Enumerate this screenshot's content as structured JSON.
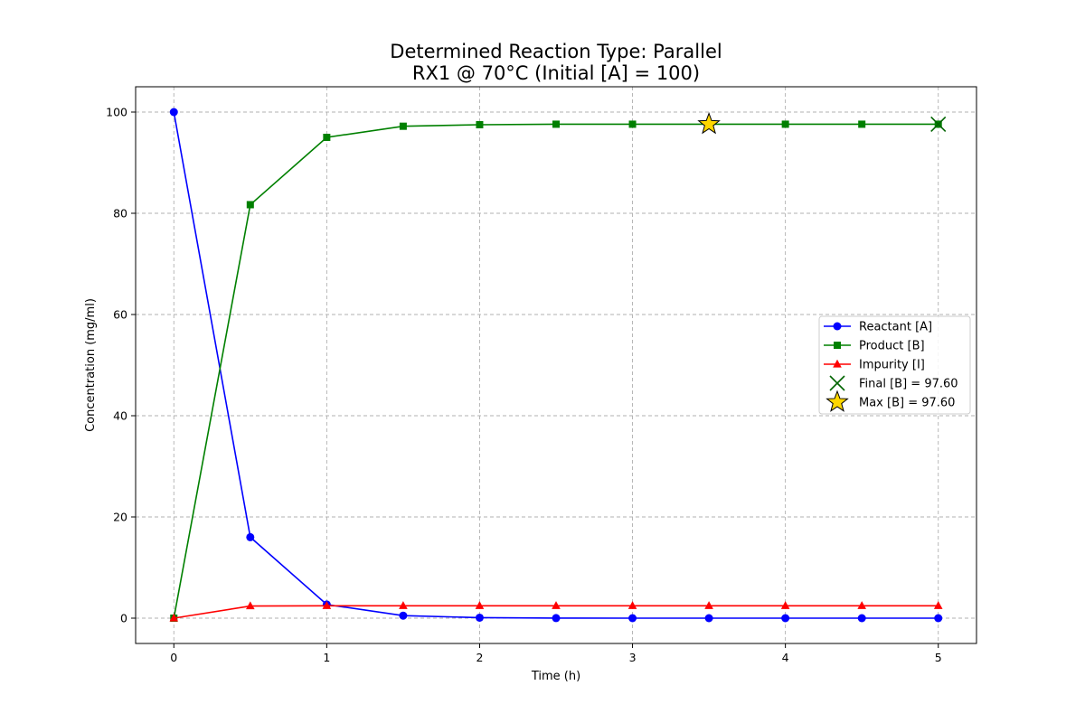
{
  "chart_data": {
    "type": "line",
    "title": "Determined Reaction Type: Parallel",
    "subtitle": "RX1 @ 70°C (Initial [A] = 100)",
    "xlabel": "Time (h)",
    "ylabel": "Concentration (mg/ml)",
    "xlim": [
      -0.25,
      5.25
    ],
    "ylim": [
      -5,
      105
    ],
    "xticks": [
      0,
      1,
      2,
      3,
      4,
      5
    ],
    "yticks": [
      0,
      20,
      40,
      60,
      80,
      100
    ],
    "grid": true,
    "legend_position": "center-right",
    "x": [
      0,
      0.5,
      1,
      1.5,
      2,
      2.5,
      3,
      3.5,
      4,
      4.5,
      5
    ],
    "series": [
      {
        "name": "Reactant [A]",
        "color": "#0000ff",
        "marker": "circle",
        "values": [
          100,
          16.0,
          2.7,
          0.5,
          0.1,
          0.02,
          0,
          0,
          0,
          0,
          0
        ]
      },
      {
        "name": "Product [B]",
        "color": "#008000",
        "marker": "square",
        "values": [
          0,
          81.7,
          95.0,
          97.2,
          97.5,
          97.6,
          97.6,
          97.6,
          97.6,
          97.6,
          97.6
        ]
      },
      {
        "name": "Impurity [I]",
        "color": "#ff0000",
        "marker": "triangle",
        "values": [
          0,
          2.4,
          2.45,
          2.45,
          2.45,
          2.45,
          2.45,
          2.45,
          2.45,
          2.45,
          2.45
        ]
      }
    ],
    "annotations": [
      {
        "name": "Final [B] = 97.60",
        "marker": "x",
        "color": "#006400",
        "x": 5,
        "y": 97.6
      },
      {
        "name": "Max [B] = 97.60",
        "marker": "star",
        "color": "#ffd700",
        "x": 3.5,
        "y": 97.6
      }
    ]
  }
}
